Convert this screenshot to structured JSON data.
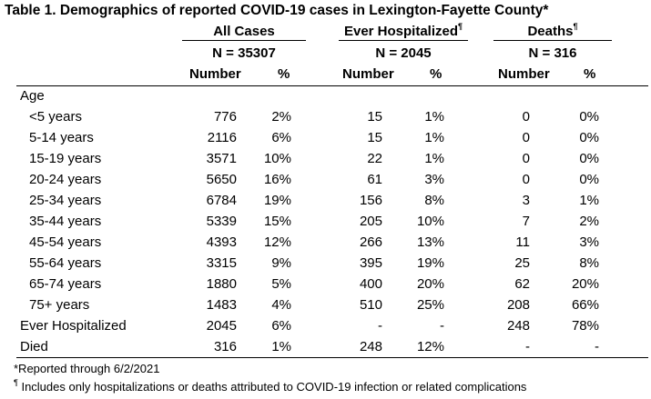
{
  "title": "Table 1. Demographics of reported COVID-19 cases in Lexington-Fayette County*",
  "groups": [
    {
      "label": "All Cases",
      "mark": "",
      "n": "N = 35307"
    },
    {
      "label": "Ever Hospitalized",
      "mark": "¶",
      "n": "N = 2045"
    },
    {
      "label": "Deaths",
      "mark": "¶",
      "n": "N = 316"
    }
  ],
  "subheaders": {
    "number": "Number",
    "percent": "%"
  },
  "section_label": "Age",
  "rows": [
    {
      "label": "<5 years",
      "indent": true,
      "v": [
        "776",
        "2%",
        "15",
        "1%",
        "0",
        "0%"
      ]
    },
    {
      "label": "5-14 years",
      "indent": true,
      "v": [
        "2116",
        "6%",
        "15",
        "1%",
        "0",
        "0%"
      ]
    },
    {
      "label": "15-19 years",
      "indent": true,
      "v": [
        "3571",
        "10%",
        "22",
        "1%",
        "0",
        "0%"
      ]
    },
    {
      "label": "20-24 years",
      "indent": true,
      "v": [
        "5650",
        "16%",
        "61",
        "3%",
        "0",
        "0%"
      ]
    },
    {
      "label": "25-34 years",
      "indent": true,
      "v": [
        "6784",
        "19%",
        "156",
        "8%",
        "3",
        "1%"
      ]
    },
    {
      "label": "35-44 years",
      "indent": true,
      "v": [
        "5339",
        "15%",
        "205",
        "10%",
        "7",
        "2%"
      ]
    },
    {
      "label": "45-54 years",
      "indent": true,
      "v": [
        "4393",
        "12%",
        "266",
        "13%",
        "11",
        "3%"
      ]
    },
    {
      "label": "55-64 years",
      "indent": true,
      "v": [
        "3315",
        "9%",
        "395",
        "19%",
        "25",
        "8%"
      ]
    },
    {
      "label": "65-74 years",
      "indent": true,
      "v": [
        "1880",
        "5%",
        "400",
        "20%",
        "62",
        "20%"
      ]
    },
    {
      "label": "75+ years",
      "indent": true,
      "v": [
        "1483",
        "4%",
        "510",
        "25%",
        "208",
        "66%"
      ]
    },
    {
      "label": "Ever Hospitalized",
      "indent": false,
      "v": [
        "2045",
        "6%",
        "-",
        "-",
        "248",
        "78%"
      ]
    },
    {
      "label": "Died",
      "indent": false,
      "v": [
        "316",
        "1%",
        "248",
        "12%",
        "-",
        "-"
      ]
    }
  ],
  "footnotes": {
    "reported": "*Reported through 6/2/2021",
    "mark": "¶",
    "includes": " Includes only hospitalizations or deaths attributed to COVID-19 infection or related complications"
  }
}
